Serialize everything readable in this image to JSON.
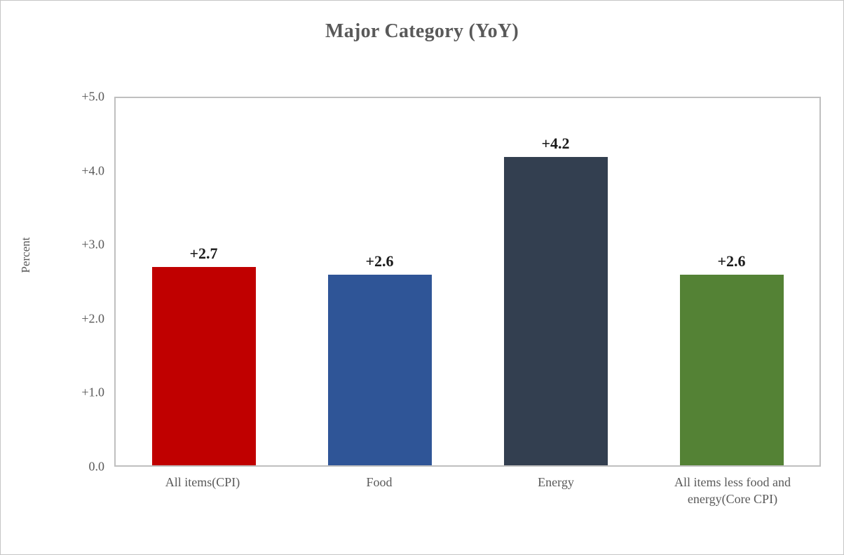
{
  "chart_data": {
    "type": "bar",
    "title": "Major Category (YoY)",
    "ylabel": "Percent",
    "xlabel": "",
    "categories": [
      "All items(CPI)",
      "Food",
      "Energy",
      "All items less food and energy(Core CPI)"
    ],
    "values": [
      2.7,
      2.6,
      4.2,
      2.6
    ],
    "value_labels": [
      "+2.7",
      "+2.6",
      "+4.2",
      "+2.6"
    ],
    "colors": [
      "#C00000",
      "#2F5597",
      "#333F50",
      "#548235"
    ],
    "ylim": [
      0,
      5
    ],
    "ytick_labels": [
      "0.0",
      "+1.0",
      "+2.0",
      "+3.0",
      "+4.0",
      "+5.0"
    ],
    "grid": false,
    "legend": "none",
    "plot_border_color": "#BFBFBF",
    "axis_text_color": "#595959",
    "label_text_color": "#1A1A1A"
  }
}
